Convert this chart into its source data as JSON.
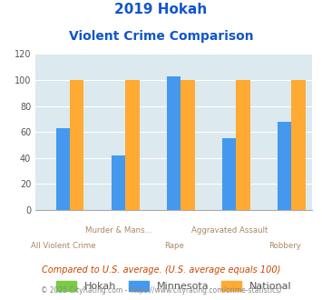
{
  "title_line1": "2019 Hokah",
  "title_line2": "Violent Crime Comparison",
  "cat_row1": [
    "",
    "Murder & Mans...",
    "",
    "Aggravated Assault",
    ""
  ],
  "cat_row2": [
    "All Violent Crime",
    "",
    "Rape",
    "",
    "Robbery"
  ],
  "hokah": [
    0,
    0,
    0,
    0,
    0
  ],
  "minnesota": [
    63,
    42,
    103,
    55,
    68
  ],
  "national": [
    100,
    100,
    100,
    100,
    100
  ],
  "bar_color_hokah": "#77cc44",
  "bar_color_minnesota": "#4499ee",
  "bar_color_national": "#ffaa33",
  "ylim": [
    0,
    120
  ],
  "yticks": [
    0,
    20,
    40,
    60,
    80,
    100,
    120
  ],
  "bg_color": "#dce9ee",
  "title_color": "#1155cc",
  "label_color": "#aa8866",
  "footnote1": "Compared to U.S. average. (U.S. average equals 100)",
  "footnote2": "© 2025 CityRating.com - https://www.cityrating.com/crime-statistics/",
  "footnote1_color": "#cc4400",
  "footnote2_color": "#888888",
  "legend_hokah": "Hokah",
  "legend_minnesota": "Minnesota",
  "legend_national": "National"
}
